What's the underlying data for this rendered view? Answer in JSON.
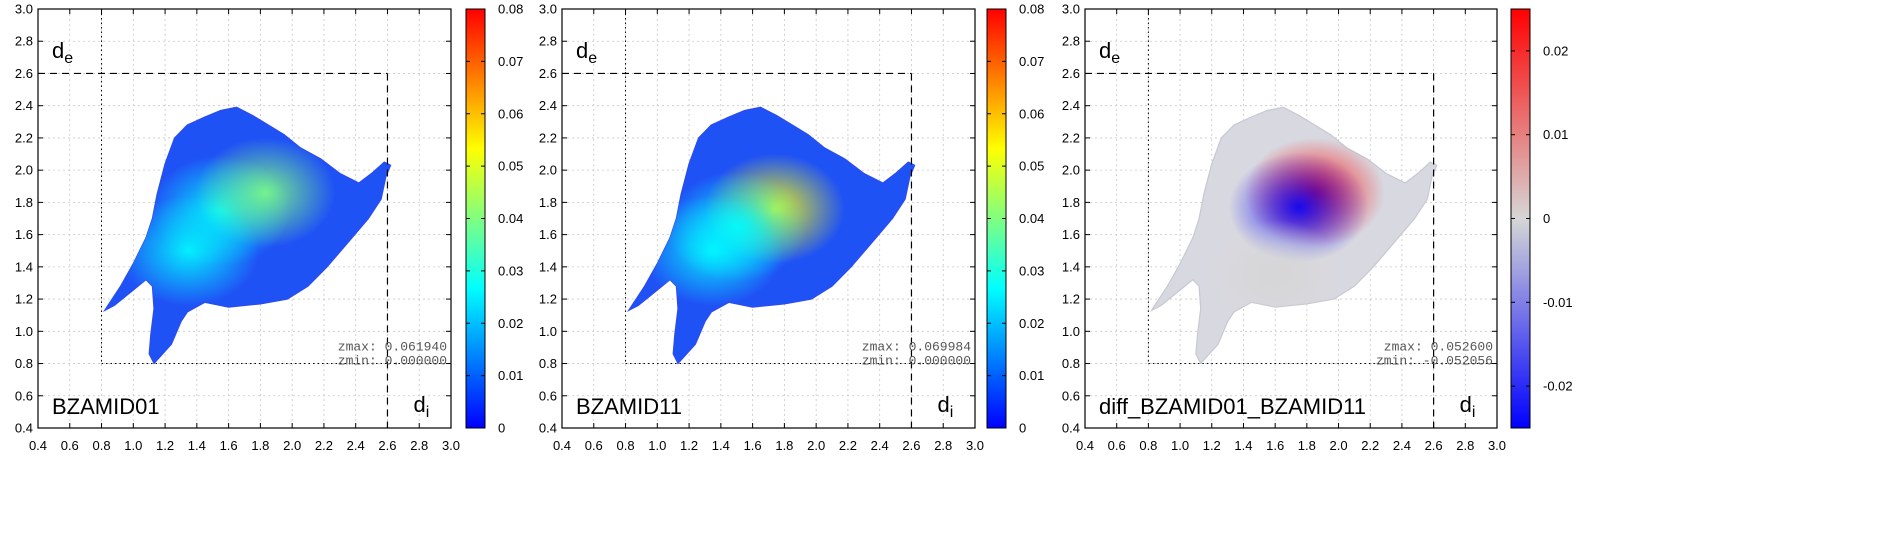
{
  "chart_data": [
    {
      "type": "heatmap",
      "panel_label": "BZAMID01",
      "ylabel": "d_e",
      "xlabel": "d_i",
      "xlim": [
        0.4,
        3.0
      ],
      "ylim": [
        0.4,
        3.0
      ],
      "x_ticks": [
        "0.4",
        "0.6",
        "0.8",
        "1.0",
        "1.2",
        "1.4",
        "1.6",
        "1.8",
        "2.0",
        "2.2",
        "2.4",
        "2.6",
        "2.8",
        "3.0"
      ],
      "y_ticks": [
        "0.4",
        "0.6",
        "0.8",
        "1.0",
        "1.2",
        "1.4",
        "1.6",
        "1.8",
        "2.0",
        "2.2",
        "2.4",
        "2.6",
        "2.8",
        "3.0"
      ],
      "grid": true,
      "reference_lines": {
        "dashed_x": 2.6,
        "dashed_y": 2.6,
        "dotted_x": 0.8,
        "dotted_y": 0.8
      },
      "colorbar": {
        "range": [
          0,
          0.08
        ],
        "colormap": "jet",
        "ticks": [
          "0",
          "0.01",
          "0.02",
          "0.03",
          "0.04",
          "0.05",
          "0.06",
          "0.07",
          "0.08"
        ]
      },
      "annotations": {
        "zmax": "zmax:  0.061940",
        "zmin": "zmin:  0.000000"
      },
      "hotspots": [
        {
          "x": 1.55,
          "y": 1.75,
          "z": 0.03
        },
        {
          "x": 1.83,
          "y": 1.86,
          "z": 0.04
        },
        {
          "x": 1.35,
          "y": 1.5,
          "z": 0.022
        }
      ]
    },
    {
      "type": "heatmap",
      "panel_label": "BZAMID11",
      "ylabel": "d_e",
      "xlabel": "d_i",
      "xlim": [
        0.4,
        3.0
      ],
      "ylim": [
        0.4,
        3.0
      ],
      "x_ticks": [
        "0.4",
        "0.6",
        "0.8",
        "1.0",
        "1.2",
        "1.4",
        "1.6",
        "1.8",
        "2.0",
        "2.2",
        "2.4",
        "2.6",
        "2.8",
        "3.0"
      ],
      "y_ticks": [
        "0.4",
        "0.6",
        "0.8",
        "1.0",
        "1.2",
        "1.4",
        "1.6",
        "1.8",
        "2.0",
        "2.2",
        "2.4",
        "2.6",
        "2.8",
        "3.0"
      ],
      "grid": true,
      "reference_lines": {
        "dashed_x": 2.6,
        "dashed_y": 2.6,
        "dotted_x": 0.8,
        "dotted_y": 0.8
      },
      "colorbar": {
        "range": [
          0,
          0.08
        ],
        "colormap": "jet",
        "ticks": [
          "0",
          "0.01",
          "0.02",
          "0.03",
          "0.04",
          "0.05",
          "0.06",
          "0.07",
          "0.08"
        ]
      },
      "annotations": {
        "zmax": "zmax:  0.069984",
        "zmin": "zmin:  0.000000"
      },
      "hotspots": [
        {
          "x": 1.74,
          "y": 1.76,
          "z": 0.055
        },
        {
          "x": 1.5,
          "y": 1.65,
          "z": 0.026
        },
        {
          "x": 1.35,
          "y": 1.5,
          "z": 0.022
        }
      ]
    },
    {
      "type": "heatmap",
      "panel_label": "diff_BZAMID01_BZAMID11",
      "ylabel": "d_e",
      "xlabel": "d_i",
      "xlim": [
        0.4,
        3.0
      ],
      "ylim": [
        0.4,
        3.0
      ],
      "x_ticks": [
        "0.4",
        "0.6",
        "0.8",
        "1.0",
        "1.2",
        "1.4",
        "1.6",
        "1.8",
        "2.0",
        "2.2",
        "2.4",
        "2.6",
        "2.8",
        "3.0"
      ],
      "y_ticks": [
        "0.4",
        "0.6",
        "0.8",
        "1.0",
        "1.2",
        "1.4",
        "1.6",
        "1.8",
        "2.0",
        "2.2",
        "2.4",
        "2.6",
        "2.8",
        "3.0"
      ],
      "grid": true,
      "reference_lines": {
        "dashed_x": 2.6,
        "dashed_y": 2.6,
        "dotted_x": 0.8,
        "dotted_y": 0.8
      },
      "colorbar": {
        "range": [
          -0.025,
          0.025
        ],
        "colormap": "blue-white-red",
        "ticks": [
          "-0.02",
          "-0.01",
          "0",
          "0.01",
          "0.02"
        ]
      },
      "annotations": {
        "zmax": "zmax:  0.052600",
        "zmin": "zmin: -0.052056"
      },
      "hotspots": [
        {
          "x": 1.85,
          "y": 1.86,
          "z": 0.02
        },
        {
          "x": 1.75,
          "y": 1.77,
          "z": -0.02
        },
        {
          "x": 1.6,
          "y": 1.35,
          "z": 0.012
        }
      ]
    }
  ],
  "colors": {
    "jet": [
      "#0000ff",
      "#0080ff",
      "#00ffff",
      "#80ff80",
      "#ffff00",
      "#ff8000",
      "#ff0000"
    ],
    "diverging": [
      "#0000ff",
      "#d6d6d6",
      "#ff0000"
    ],
    "shape_base_jet": "#1f52f5",
    "shape_base_diff": "#d8d8e0",
    "grid": "#c8c8c8"
  }
}
